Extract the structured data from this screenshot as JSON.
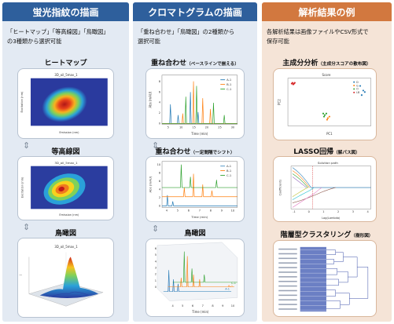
{
  "col1": {
    "title": "蛍光指紋の描画",
    "desc_line1": "「ヒートマップ」「等高線図」「鳥瞰図」",
    "desc_line2": "の3種類から選択可能",
    "heatmap": {
      "label": "ヒートマップ",
      "plot_title": "3D_oil_5mav_1",
      "xlabel": "Emission (nm)",
      "ylabel": "Excitation (nm)"
    },
    "contour": {
      "label": "等高線図",
      "plot_title": "3D_oil_5mav_1",
      "xlabel": "Emission (nm)",
      "ylabel": "Excitation (nm)"
    },
    "birdseye": {
      "label": "鳥瞰図",
      "plot_title": "3D_oil_5mav_1"
    }
  },
  "col2": {
    "title": "クロマトグラムの描画",
    "desc_line1": "「重ね合わせ」「鳥瞰図」の2種類から",
    "desc_line2": "選択可能",
    "overlay_baseline": {
      "label": "重ね合わせ",
      "label_note": "（ベースラインで揃える）",
      "xlabel": "Time (min)",
      "ylabel": "Abs (mAU)",
      "xticks": [
        "5",
        "10",
        "15",
        "20",
        "25",
        "30"
      ],
      "yticks": [
        "0",
        "2",
        "4",
        "6",
        "8"
      ],
      "legend": [
        "A-1",
        "B-1",
        "C-1"
      ]
    },
    "overlay_shift": {
      "label": "重ね合わせ",
      "label_note": "（一定間隔でシフト）",
      "xlabel": "Time (min)",
      "ylabel": "Abs (mAU)",
      "xticks": [
        "4",
        "5",
        "6",
        "7",
        "8",
        "9",
        "10"
      ],
      "yticks": [
        "0",
        "2",
        "4",
        "6",
        "8",
        "10"
      ],
      "legend": [
        "A-1",
        "B-1",
        "C-1"
      ]
    },
    "birdseye": {
      "label": "鳥瞰図",
      "xlabel": "Time (min)",
      "xticks": [
        "4",
        "5",
        "6",
        "7",
        "8",
        "9",
        "10"
      ],
      "zticks": [
        "0",
        "1",
        "2",
        "3",
        "4",
        "5",
        "6"
      ],
      "series_labels": [
        "A-1",
        "B-1",
        "C-1"
      ]
    }
  },
  "col3": {
    "title": "解析結果の例",
    "desc_line1": "各解析結果は画像ファイルやCSV形式で",
    "desc_line2": "保存可能",
    "pca": {
      "label": "主成分分析",
      "label_note": "（主成分スコアの散布図）",
      "plot_title": "Score",
      "xlabel": "PC1",
      "ylabel": "PC2",
      "legend": [
        "D",
        "G",
        "O",
        "LB"
      ],
      "colors": {
        "D": "#1f77b4",
        "G": "#ff7f0e",
        "O": "#2ca02c",
        "LB": "#d62728"
      }
    },
    "lasso": {
      "label": "LASSO回帰",
      "label_note": "（解パス図）",
      "plot_title": "Solution path",
      "xlabel": "Log(Lambda)",
      "ylabel": "Coefficients",
      "xticks": [
        "-1",
        "0",
        "1",
        "2",
        "3",
        "4"
      ]
    },
    "cluster": {
      "label": "階層型クラスタリング",
      "label_note": "（樹形図）"
    }
  }
}
